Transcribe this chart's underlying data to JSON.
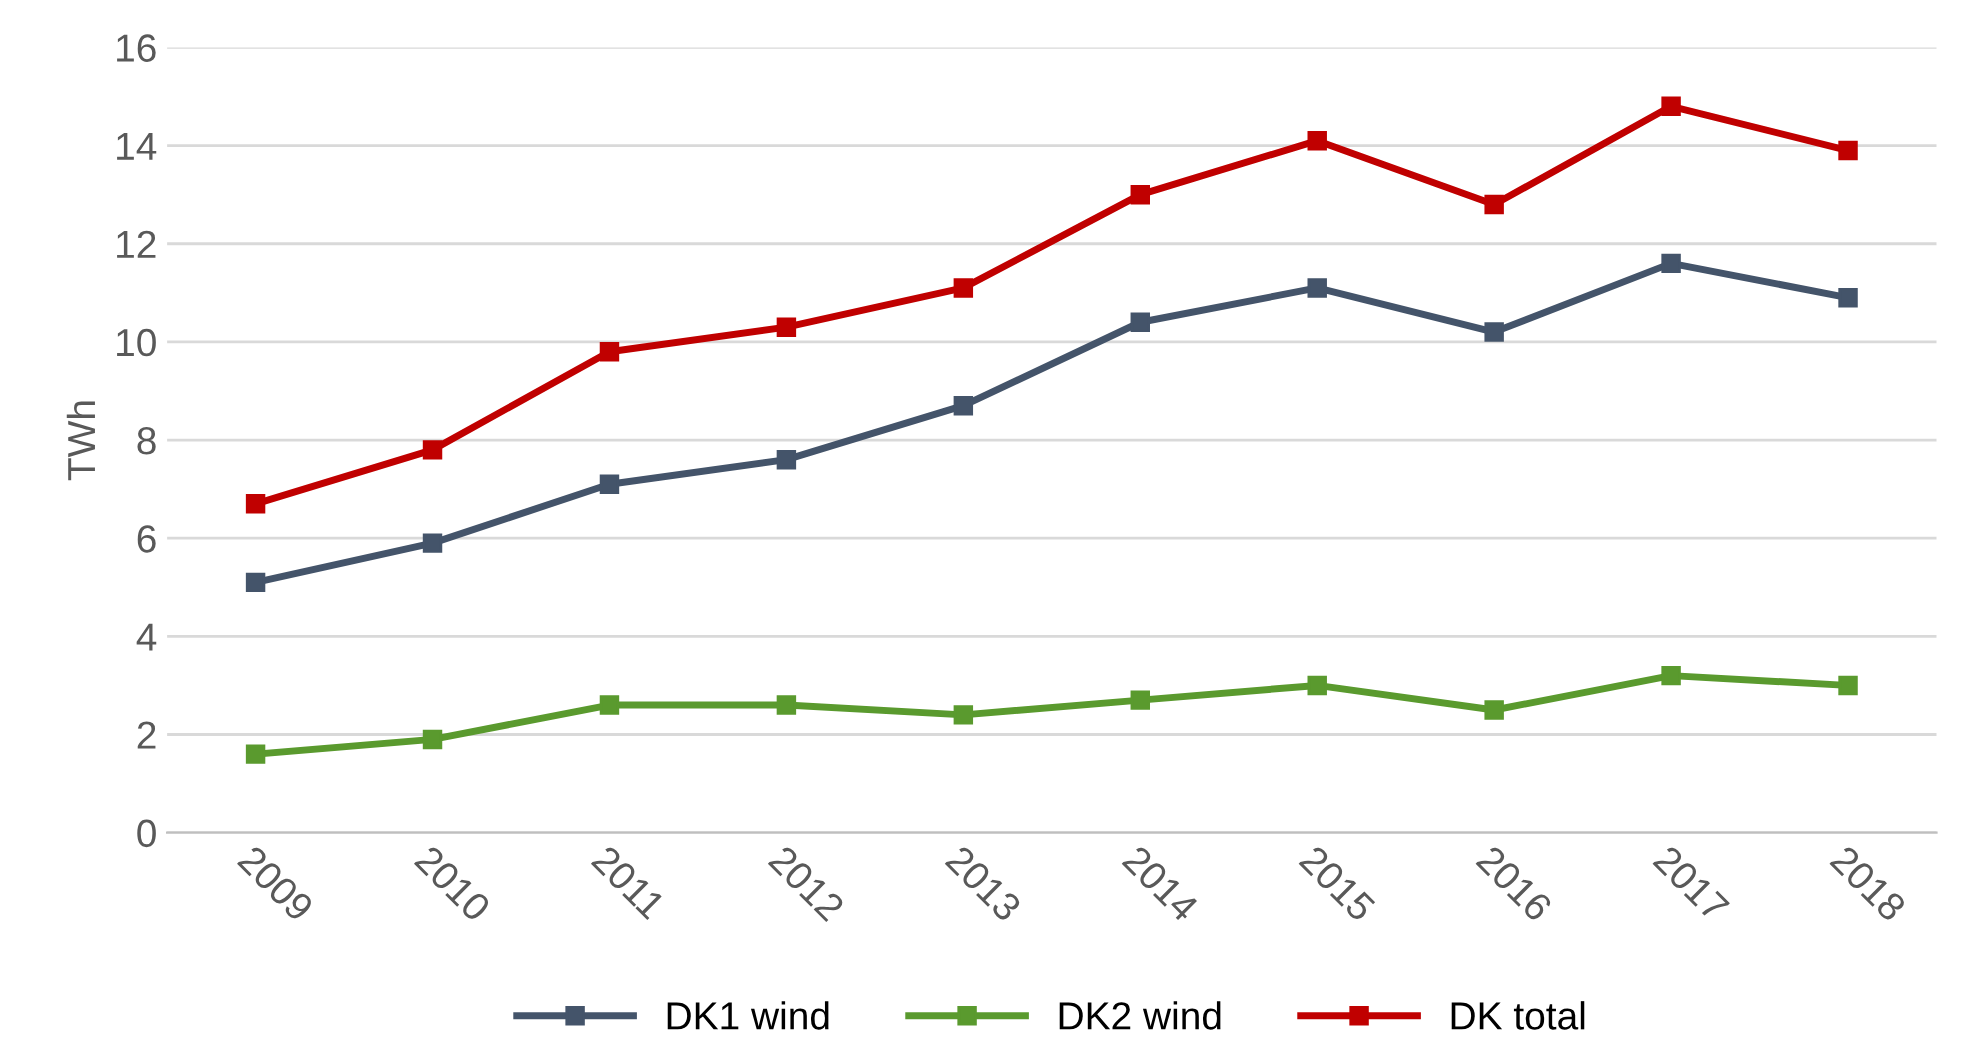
{
  "chart_data": {
    "type": "line",
    "ylabel": "TWh",
    "categories": [
      "2009",
      "2010",
      "2011",
      "2012",
      "2013",
      "2014",
      "2015",
      "2016",
      "2017",
      "2018"
    ],
    "series": [
      {
        "name": "DK1 wind",
        "color": "#44546a",
        "values": [
          5.1,
          5.9,
          7.1,
          7.6,
          8.7,
          10.4,
          11.1,
          10.2,
          11.6,
          10.9
        ]
      },
      {
        "name": "DK2 wind",
        "color": "#5a9a2e",
        "values": [
          1.6,
          1.9,
          2.6,
          2.6,
          2.4,
          2.7,
          3.0,
          2.5,
          3.2,
          3.0
        ]
      },
      {
        "name": "DK total",
        "color": "#c00000",
        "values": [
          6.7,
          7.8,
          9.8,
          10.3,
          11.1,
          13.0,
          14.1,
          12.8,
          14.8,
          13.9
        ]
      }
    ],
    "ylim": [
      0,
      16
    ],
    "yticks": [
      0,
      2,
      4,
      6,
      8,
      10,
      12,
      14,
      16
    ],
    "grid": "y",
    "legend": "bottom",
    "marker": "square",
    "line_style": "solid"
  }
}
